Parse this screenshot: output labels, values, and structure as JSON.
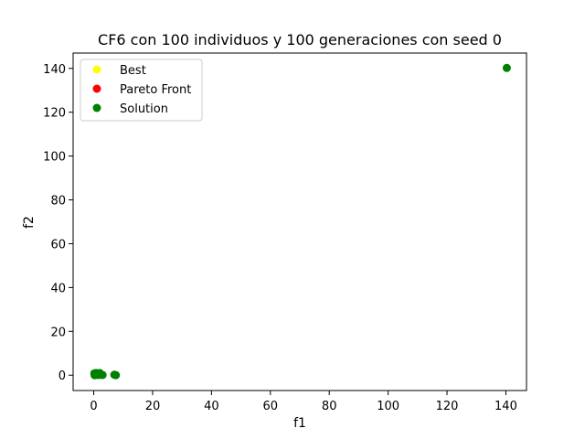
{
  "chart_data": {
    "type": "scatter",
    "title": "CF6 con 100 individuos y 100 generaciones con seed 0",
    "xlabel": "f1",
    "ylabel": "f2",
    "xlim": [
      -7,
      147
    ],
    "ylim": [
      -7,
      147
    ],
    "xticks": [
      0,
      20,
      40,
      60,
      80,
      100,
      120,
      140
    ],
    "yticks": [
      0,
      20,
      40,
      60,
      80,
      100,
      120,
      140
    ],
    "grid": false,
    "legend_position": "top-left",
    "series": [
      {
        "name": "Best",
        "color": "#ffff00",
        "points": []
      },
      {
        "name": "Pareto Front",
        "color": "#ff0000",
        "points": []
      },
      {
        "name": "Solution",
        "color": "#008000",
        "points": [
          [
            0.2,
            0.8
          ],
          [
            0.5,
            0.3
          ],
          [
            0.8,
            1.0
          ],
          [
            1.0,
            0.2
          ],
          [
            1.2,
            0.6
          ],
          [
            1.5,
            0.1
          ],
          [
            1.8,
            0.4
          ],
          [
            2.0,
            1.0
          ],
          [
            2.2,
            0.2
          ],
          [
            2.5,
            0.3
          ],
          [
            3.0,
            0.1
          ],
          [
            0.3,
            0.0
          ],
          [
            1.0,
            0.5
          ],
          [
            7.0,
            0.2
          ],
          [
            7.5,
            0.0
          ],
          [
            140.3,
            140.2
          ]
        ]
      }
    ]
  }
}
